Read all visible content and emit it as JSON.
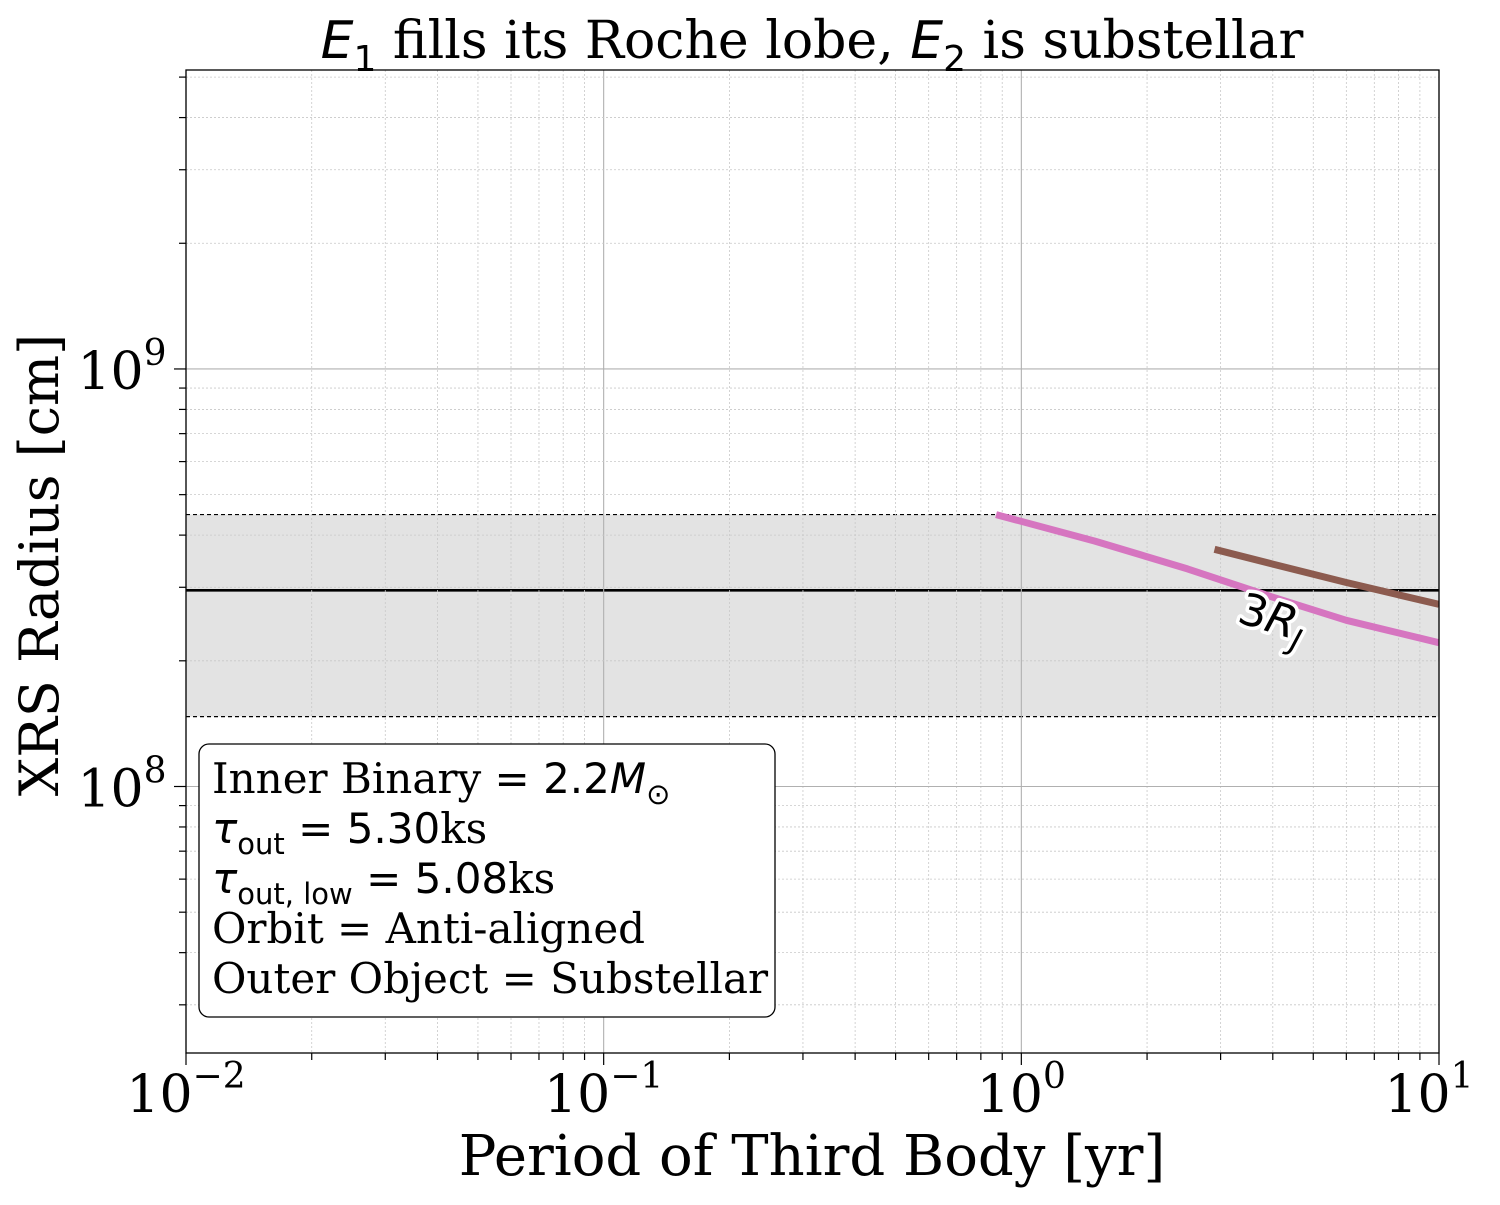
{
  "chart_data": {
    "type": "line",
    "title": {
      "parts": [
        {
          "text": "E",
          "style": "math"
        },
        {
          "text": "1",
          "style": "sub"
        },
        {
          "text": " fills its Roche lobe, ",
          "style": "roman"
        },
        {
          "text": "E",
          "style": "math"
        },
        {
          "text": "2",
          "style": "sub"
        },
        {
          "text": " is substellar",
          "style": "roman"
        }
      ]
    },
    "xlabel": "Period of Third Body [yr]",
    "ylabel": "XRS Radius [cm]",
    "x_scale": "log",
    "y_scale": "log",
    "xlim": [
      0.01,
      10
    ],
    "ylim": [
      23000000,
      5200000000
    ],
    "grid": true,
    "x_ticks": [
      {
        "value": 0.01,
        "base": "10",
        "exp": "−2"
      },
      {
        "value": 0.1,
        "base": "10",
        "exp": "−1"
      },
      {
        "value": 1,
        "base": "10",
        "exp": "0"
      },
      {
        "value": 10,
        "base": "10",
        "exp": "1"
      }
    ],
    "y_ticks": [
      {
        "value": 100000000,
        "base": "10",
        "exp": "8"
      },
      {
        "value": 1000000000,
        "base": "10",
        "exp": "9"
      }
    ],
    "reference_band": {
      "center": 295000000,
      "lower": 147000000,
      "upper": 448000000,
      "band_color": "#e3e3e3",
      "center_color": "#000000"
    },
    "series": [
      {
        "color": "#d675c0",
        "points": [
          [
            0.87,
            448000000
          ],
          [
            1.5,
            387000000
          ],
          [
            2.5,
            332000000
          ],
          [
            4.0,
            284000000
          ],
          [
            6.0,
            250000000
          ],
          [
            10.0,
            221000000
          ]
        ]
      },
      {
        "color": "#8c5b4f",
        "points": [
          [
            2.9,
            370000000
          ],
          [
            4.0,
            341000000
          ],
          [
            6.0,
            308000000
          ],
          [
            10.0,
            273000000
          ]
        ]
      }
    ],
    "annotations": [
      {
        "base": "3",
        "italic": "R",
        "sub": "J",
        "x": 3.9,
        "y": 235000000,
        "rotation": 17
      }
    ],
    "info_box": {
      "lines": [
        [
          {
            "text": "Inner Binary",
            "style": "roman"
          },
          {
            "text": " = 2.2",
            "style": "mathup"
          },
          {
            "text": "M",
            "style": "math"
          },
          {
            "text": "⊙",
            "style": "sub"
          }
        ],
        [
          {
            "text": "τ",
            "style": "math"
          },
          {
            "text": "out",
            "style": "sub"
          },
          {
            "text": " = 5.30",
            "style": "mathup"
          },
          {
            "text": "ks",
            "style": "roman"
          }
        ],
        [
          {
            "text": "τ",
            "style": "math"
          },
          {
            "text": "out, low",
            "style": "sub"
          },
          {
            "text": " = 5.08",
            "style": "mathup"
          },
          {
            "text": "ks",
            "style": "roman"
          }
        ],
        [
          {
            "text": "Orbit = Anti-aligned",
            "style": "roman"
          }
        ],
        [
          {
            "text": "Outer Object = Substellar",
            "style": "roman"
          }
        ]
      ]
    }
  }
}
